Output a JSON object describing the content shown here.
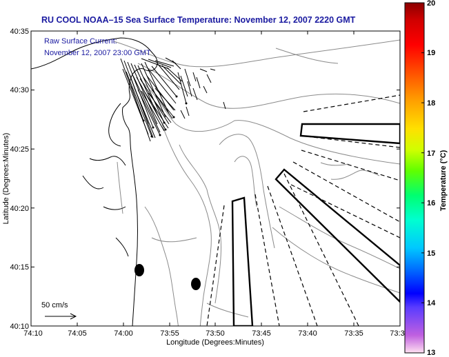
{
  "title": "RU COOL  NOAA–15  Sea Surface Temperature:  November 12, 2007 2220 GMT",
  "annotation": {
    "line1": "Raw Surface Current:",
    "line2": "November 12, 2007 23:00 GMT"
  },
  "axes": {
    "xlabel": "Longitude (Degrees:Minutes)",
    "ylabel": "Latitude (Degrees:Minutes)",
    "xticks": [
      "74:10",
      "74:05",
      "74:00",
      "73:55",
      "73:50",
      "73:45",
      "73:40",
      "73:35",
      "73:3"
    ],
    "yticks": [
      "40:10",
      "40:15",
      "40:20",
      "40:25",
      "40:30",
      "40:35"
    ]
  },
  "scale_label": "50 cm/s",
  "colorbar": {
    "label": "Temperature (°C)",
    "ticks": [
      "13",
      "14",
      "15",
      "16",
      "17",
      "18",
      "19",
      "20"
    ],
    "min": 13,
    "max": 20,
    "colors": [
      "#ffe0f0",
      "#c060e0",
      "#5a3cff",
      "#0000ff",
      "#0070ff",
      "#00c8ff",
      "#00ffd0",
      "#00ff70",
      "#60ff00",
      "#d0ff00",
      "#ffe000",
      "#ffa000",
      "#ff5000",
      "#ff0000",
      "#d00000",
      "#8b0000"
    ]
  }
}
